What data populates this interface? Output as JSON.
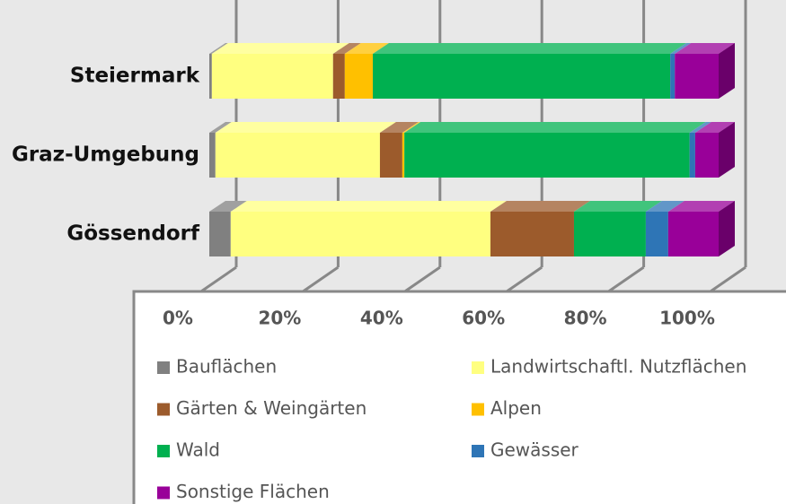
{
  "chart_data": {
    "type": "bar",
    "orientation": "horizontal",
    "stacked": true,
    "categories": [
      "Steiermark",
      "Graz-Umgebung",
      "Gössendorf"
    ],
    "series": [
      {
        "name": "Bauflächen",
        "color": "#808080",
        "values": [
          0.5,
          1.2,
          4.2
        ]
      },
      {
        "name": "Landwirtschaftl. Nutzflächen",
        "color": "#ffff80",
        "values": [
          23.8,
          32.3,
          51.0
        ]
      },
      {
        "name": "Gärten & Weingärten",
        "color": "#9c5b2c",
        "values": [
          2.3,
          4.4,
          16.4
        ]
      },
      {
        "name": "Alpen",
        "color": "#ffc000",
        "values": [
          5.5,
          0.4,
          0
        ]
      },
      {
        "name": "Wald",
        "color": "#00b050",
        "values": [
          58.4,
          56.0,
          14.1
        ]
      },
      {
        "name": "Gewässer",
        "color": "#2e75b6",
        "values": [
          0.9,
          1.1,
          4.4
        ]
      },
      {
        "name": "Sonstige Flächen",
        "color": "#990099",
        "values": [
          8.6,
          4.6,
          9.9
        ]
      }
    ],
    "xlim": [
      0,
      100
    ],
    "xticks": [
      {
        "value": 0,
        "label": "0%"
      },
      {
        "value": 20,
        "label": "20%"
      },
      {
        "value": 40,
        "label": "40%"
      },
      {
        "value": 60,
        "label": "60%"
      },
      {
        "value": 80,
        "label": "80%"
      },
      {
        "value": 100,
        "label": "100%"
      }
    ],
    "grid": true,
    "legend": "bottom"
  }
}
